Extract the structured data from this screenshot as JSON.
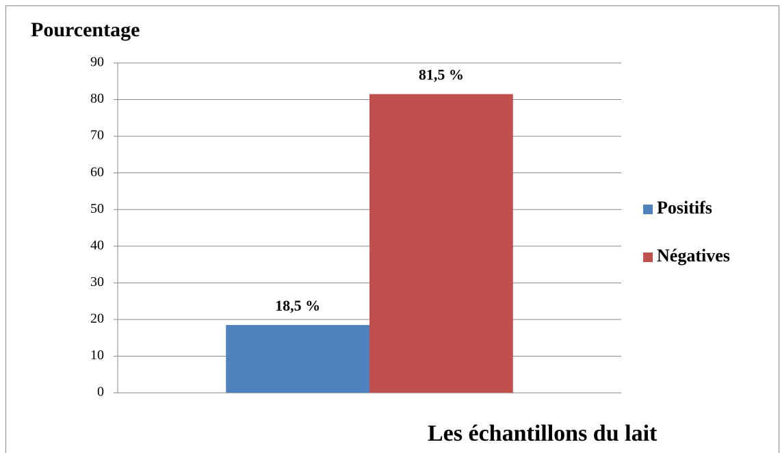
{
  "chart_data": {
    "type": "bar",
    "y_label": "Pourcentage",
    "x_label": "Les échantillons du lait",
    "categories": [
      null
    ],
    "series": [
      {
        "name": "Positifs",
        "color": "#4f81bd",
        "values": [
          18.5
        ],
        "value_labels": [
          "18,5 %"
        ]
      },
      {
        "name": "Négatives",
        "color": "#c0504d",
        "values": [
          81.5
        ],
        "value_labels": [
          "81,5 %"
        ]
      }
    ],
    "ylim": [
      0,
      90
    ],
    "yticks": [
      0,
      10,
      20,
      30,
      40,
      50,
      60,
      70,
      80,
      90
    ],
    "grid": true,
    "legend": "right"
  }
}
